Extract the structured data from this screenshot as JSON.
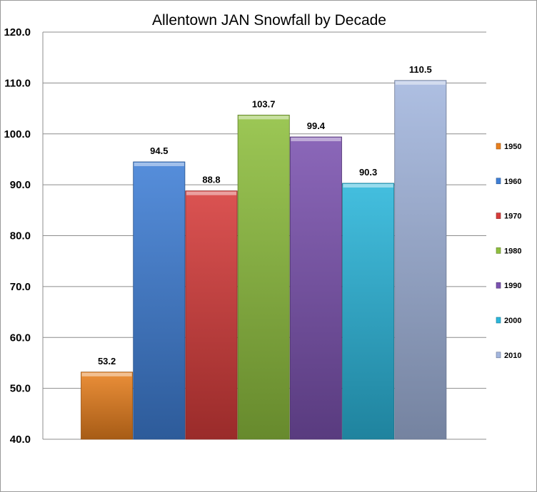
{
  "chart_data": {
    "type": "bar",
    "title": "Allentown JAN Snowfall by Decade",
    "xlabel": "",
    "ylabel": "",
    "ylim": [
      40,
      120
    ],
    "y_ticks": [
      "40.0",
      "50.0",
      "60.0",
      "70.0",
      "80.0",
      "90.0",
      "100.0",
      "110.0",
      "120.0"
    ],
    "grid": true,
    "legend_position": "right",
    "categories": [
      "1950",
      "1960",
      "1970",
      "1980",
      "1990",
      "2000",
      "2010"
    ],
    "values": [
      53.2,
      94.5,
      88.8,
      103.7,
      99.4,
      90.3,
      110.5
    ],
    "value_labels": [
      "53.2",
      "94.5",
      "88.8",
      "103.7",
      "99.4",
      "90.3",
      "110.5"
    ],
    "colors": [
      "#e8801e",
      "#3f7fd6",
      "#d63c3a",
      "#8fbf3e",
      "#7b52b0",
      "#2bb6db",
      "#a3b6de"
    ]
  }
}
